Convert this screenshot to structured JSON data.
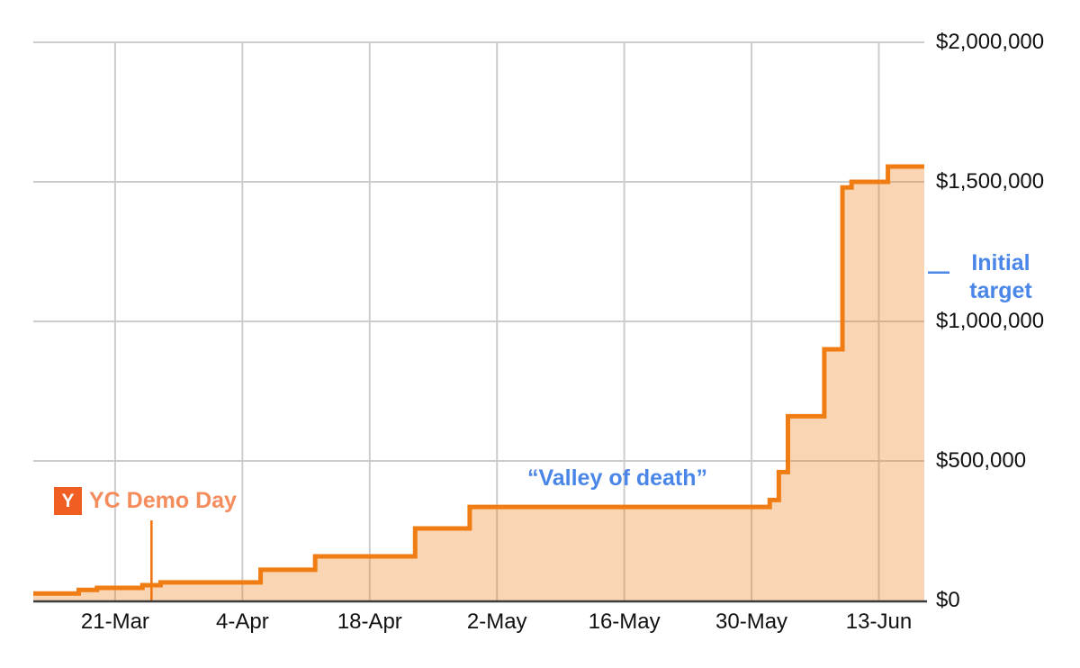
{
  "annotations": {
    "yc_badge_letter": "Y",
    "yc_demo_day": "YC Demo Day",
    "valley_of_death": "“Valley of death”",
    "initial_target_line1": "Initial",
    "initial_target_line2": "target"
  },
  "colors": {
    "step_line": "#F07D13",
    "area_fill": "rgba(240,125,19,0.32)",
    "demo_day_marker": "#F0720D",
    "yc_square": "#F15E22",
    "yc_text": "#F48C5C",
    "annotation_blue": "#4A86E8",
    "gridline": "#CCCCCC",
    "axis_line": "#3B3B3B",
    "tick_text": "#111111"
  },
  "chart_data": {
    "type": "area",
    "subtype": "step-after",
    "title": "",
    "xlabel": "",
    "ylabel": "",
    "grid": true,
    "legend": "none",
    "y_axis_side": "right",
    "ylim": [
      0,
      2000000
    ],
    "x_range_days": [
      0,
      98
    ],
    "y_ticks": [
      {
        "label": "$0",
        "value": 0
      },
      {
        "label": "$500,000",
        "value": 500000
      },
      {
        "label": "$1,000,000",
        "value": 1000000
      },
      {
        "label": "$1,500,000",
        "value": 1500000
      },
      {
        "label": "$2,000,000",
        "value": 2000000
      }
    ],
    "x_ticks": [
      {
        "label": "21-Mar",
        "day": 9
      },
      {
        "label": "4-Apr",
        "day": 23
      },
      {
        "label": "18-Apr",
        "day": 37
      },
      {
        "label": "2-May",
        "day": 51
      },
      {
        "label": "16-May",
        "day": 65
      },
      {
        "label": "30-May",
        "day": 79
      },
      {
        "label": "13-Jun",
        "day": 93
      }
    ],
    "series": [
      {
        "name": "cumulative_amount_raised",
        "points": [
          {
            "date": "12-Mar",
            "day": 0,
            "value": 25000
          },
          {
            "date": "17-Mar",
            "day": 5,
            "value": 38000
          },
          {
            "date": "19-Mar",
            "day": 7,
            "value": 45000
          },
          {
            "date": "24-Mar",
            "day": 12,
            "value": 55000
          },
          {
            "date": "26-Mar",
            "day": 14,
            "value": 65000
          },
          {
            "date": "6-Apr",
            "day": 25,
            "value": 110000
          },
          {
            "date": "12-Apr",
            "day": 31,
            "value": 158000
          },
          {
            "date": "23-Apr",
            "day": 42,
            "value": 258000
          },
          {
            "date": "29-Apr",
            "day": 48,
            "value": 335000
          },
          {
            "date": "1-Jun",
            "day": 81,
            "value": 360000
          },
          {
            "date": "2-Jun",
            "day": 82,
            "value": 460000
          },
          {
            "date": "3-Jun",
            "day": 83,
            "value": 660000
          },
          {
            "date": "7-Jun",
            "day": 87,
            "value": 900000
          },
          {
            "date": "9-Jun",
            "day": 89,
            "value": 1480000
          },
          {
            "date": "10-Jun",
            "day": 90,
            "value": 1500000
          },
          {
            "date": "14-Jun",
            "day": 94,
            "value": 1555000
          },
          {
            "date": "18-Jun",
            "day": 98,
            "value": 1555000
          }
        ]
      }
    ],
    "markers": {
      "demo_day": {
        "label": "YC Demo Day",
        "date": "25-Mar",
        "day": 13
      },
      "initial_target": {
        "label": "Initial target",
        "value": 1175000
      }
    }
  }
}
